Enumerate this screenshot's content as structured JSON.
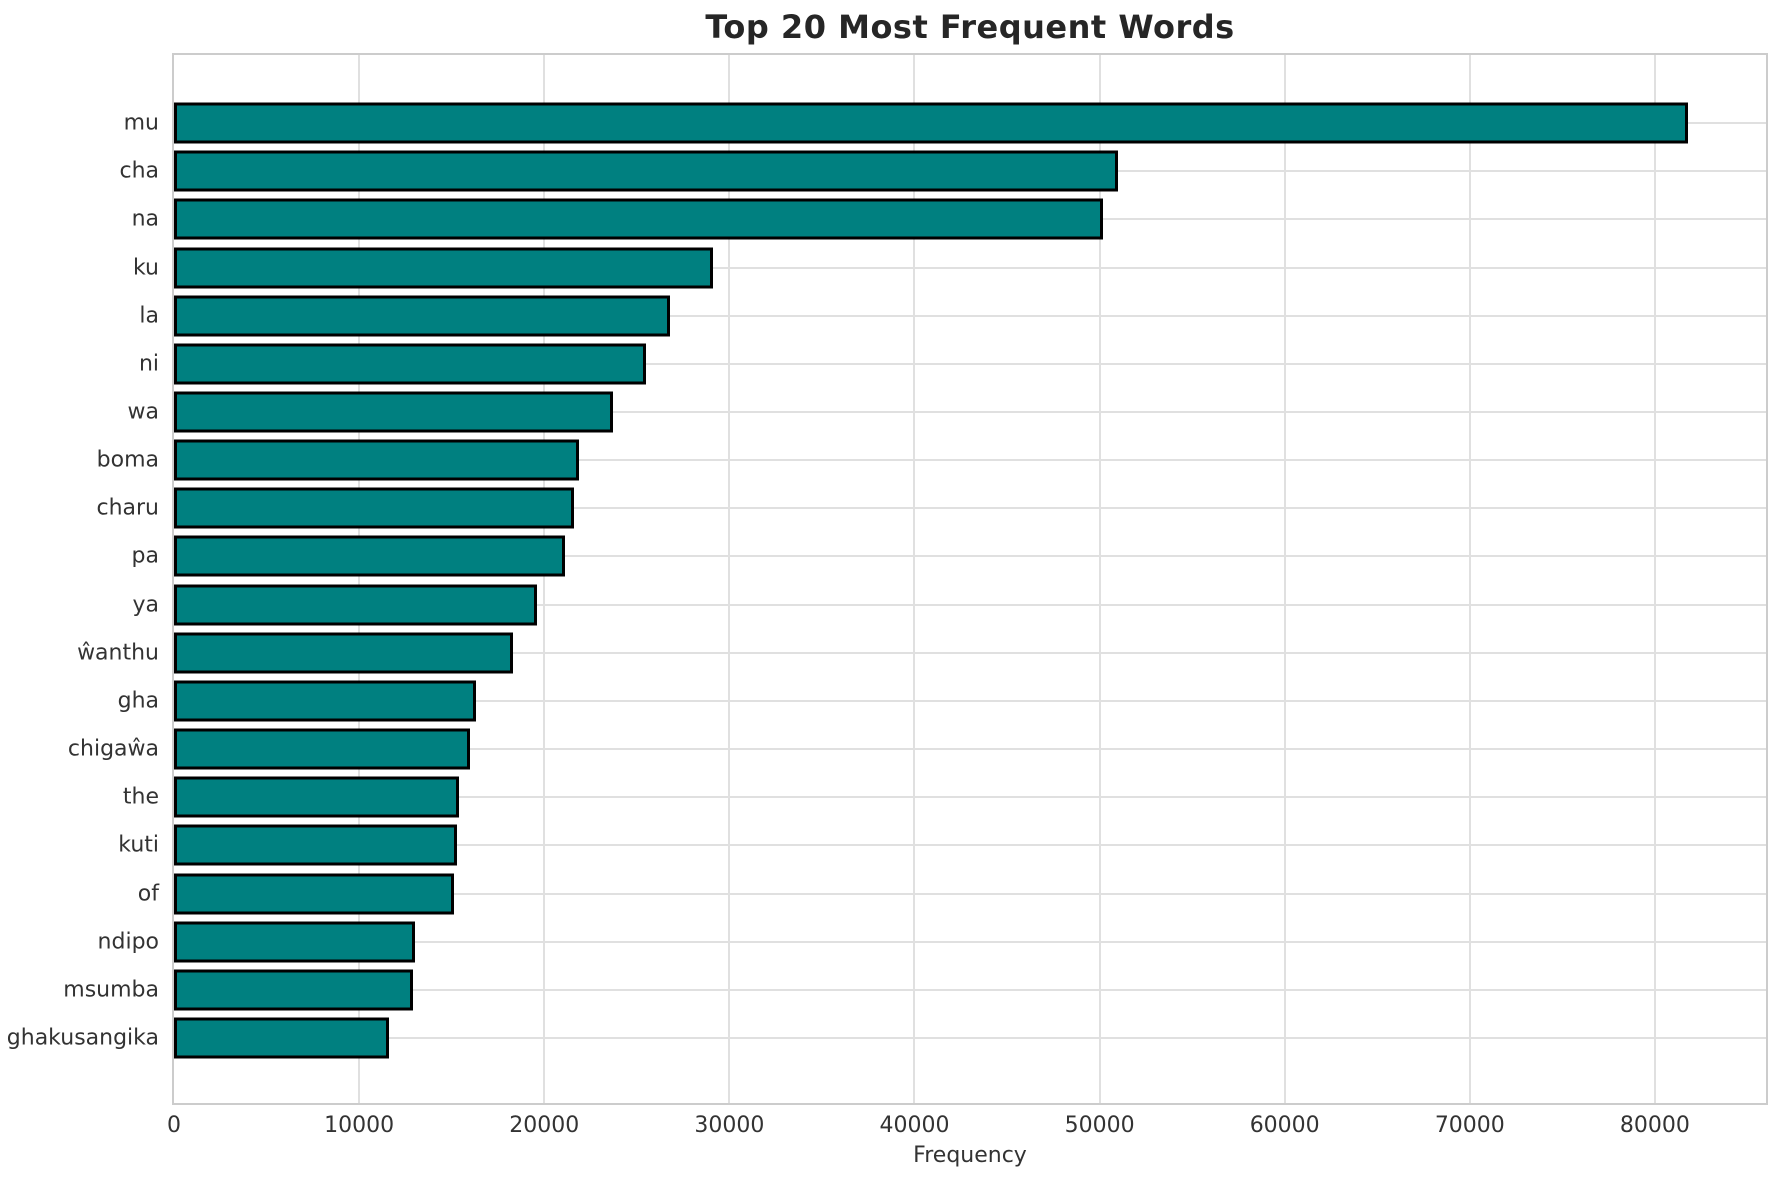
{
  "chart_data": {
    "type": "bar",
    "orientation": "horizontal",
    "title": "Top 20 Most Frequent Words",
    "xlabel": "Frequency",
    "ylabel": "",
    "categories": [
      "mu",
      "cha",
      "na",
      "ku",
      "la",
      "ni",
      "wa",
      "boma",
      "charu",
      "pa",
      "ya",
      "ŵanthu",
      "gha",
      "chigaŵa",
      "the",
      "kuti",
      "of",
      "ndipo",
      "msumba",
      "ghakusangika"
    ],
    "values": [
      81800,
      51000,
      50200,
      29100,
      26800,
      25500,
      23700,
      21900,
      21600,
      21100,
      19600,
      18300,
      16300,
      16000,
      15400,
      15300,
      15100,
      13000,
      12900,
      11600
    ],
    "xlim": [
      0,
      86000
    ],
    "xticks": [
      0,
      10000,
      20000,
      30000,
      40000,
      50000,
      60000,
      70000,
      80000
    ],
    "grid": true,
    "legend": "none",
    "colors": {
      "bar_fill": "#008080",
      "bar_edge": "#000000",
      "gridline": "#e0e0e0",
      "spine": "#cccccc",
      "title_text": "#262626",
      "tick_text": "#333333"
    }
  }
}
